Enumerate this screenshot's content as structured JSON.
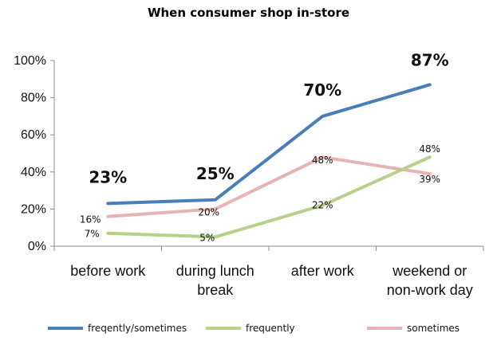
{
  "chart_data": {
    "type": "line",
    "title": "When consumer shop in-store",
    "categories": [
      "before work",
      "during lunch\nbreak",
      "after work",
      "weekend or\nnon-work day"
    ],
    "ylim": [
      0,
      100
    ],
    "yticks": [
      "0%",
      "20%",
      "40%",
      "60%",
      "80%",
      "100%"
    ],
    "grid": false,
    "legend_position": "bottom",
    "series": [
      {
        "name": "freqently/sometimes",
        "color": "#4a7ebb",
        "values": [
          23,
          25,
          70,
          87
        ],
        "labels": [
          "23%",
          "25%",
          "70%",
          "87%"
        ]
      },
      {
        "name": "frequently",
        "color": "#b7d08a",
        "values": [
          7,
          5,
          22,
          48
        ],
        "labels": [
          "7%",
          "5%",
          "22%",
          "48%"
        ]
      },
      {
        "name": "sometimes",
        "color": "#e8b4b2",
        "values": [
          16,
          20,
          48,
          39
        ],
        "labels": [
          "16%",
          "20%",
          "48%",
          "39%"
        ]
      }
    ]
  }
}
